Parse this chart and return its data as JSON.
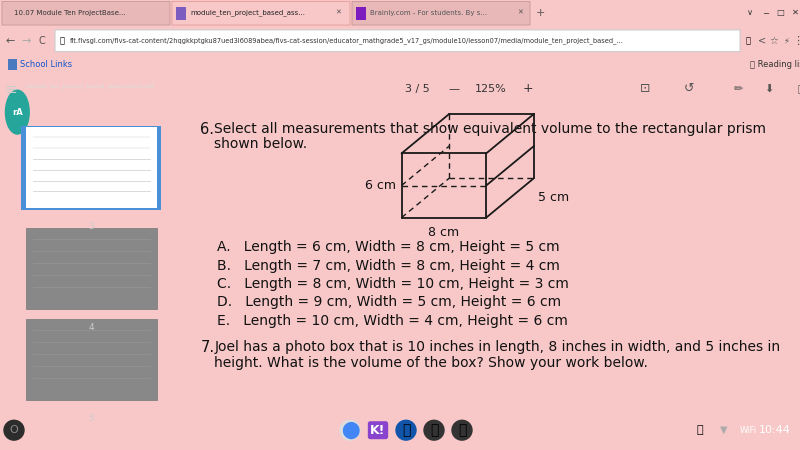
{
  "bg_color": "#ffffff",
  "browser_tab_bg": "#f8c8c8",
  "browser_nav_bg": "#f8c8c8",
  "bookmarks_bg": "#f8c8c8",
  "sidebar_bg": "#3c3c3c",
  "sidebar_text_color": "#ffffff",
  "content_bg": "#ffffff",
  "pdf_toolbar_bg": "#f5f5f5",
  "taskbar_bg": "#1a1a1a",
  "question6_number": "6.",
  "question6_text1": "Select all measurements that show equivalent volume to the rectangular prism",
  "question6_text2": "shown below.",
  "prism_label_height": "6 cm",
  "prism_label_width": "5 cm",
  "prism_label_length": "8 cm",
  "options": [
    "A.   Length = 6 cm, Width = 8 cm, Height = 5 cm",
    "B.   Length = 7 cm, Width = 8 cm, Height = 4 cm",
    "C.   Length = 8 cm, Width = 10 cm, Height = 3 cm",
    "D.   Length = 9 cm, Width = 5 cm, Height = 6 cm",
    "E.   Length = 10 cm, Width = 4 cm, Height = 6 cm"
  ],
  "question7_number": "7.",
  "question7_line1": "Joel has a photo box that is 10 inches in length, 8 inches in width, and 5 inches in",
  "question7_line2": "height. What is the volume of the box? Show your work below.",
  "text_color": "#000000",
  "tab1_text": "10.07 Module Ten ProjectBase...",
  "tab2_text": "module_ten_project_based_ass...",
  "tab3_text": "Brainly.com - For students. By s...",
  "page_indicator": "3 / 5",
  "zoom_level": "125%",
  "filename": "module_ten_project_based_assessment.pdf",
  "time": "10:44",
  "address_url": "flt.flvsgl.com/flvs-cat-content/2hqgkkptgku87ued3l6089abea/flvs-cat-session/educator_mathgrade5_v17_gs/module10/lesson07/media/module_ten_project_based_...",
  "sidebar_pages": [
    "3",
    "4",
    "5"
  ],
  "thumbnail_highlight_color": "#4a90d9",
  "thumbnail_color_active": "#ffffff",
  "thumbnail_color_inactive": "#aaaaaa"
}
